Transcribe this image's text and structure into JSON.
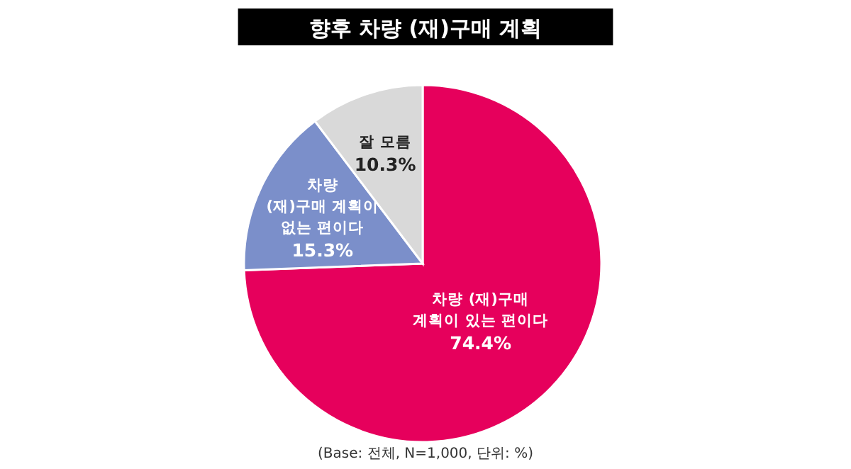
{
  "chart_data": {
    "type": "pie",
    "title": "향후 차량 (재)구매 계획",
    "categories": [
      "차량 (재)구매\n계획이 있는 편이다",
      "차량\n(재)구매 계획이\n없는 편이다",
      "잘 모름"
    ],
    "values": [
      74.4,
      15.3,
      10.3
    ],
    "colors": [
      "#e6005c",
      "#7b8fca",
      "#d9d9d9"
    ],
    "value_labels": [
      "74.4%",
      "15.3%",
      "10.3%"
    ],
    "annotations": [
      "(Base: 전체, N=1,000, 단위: %)"
    ]
  }
}
